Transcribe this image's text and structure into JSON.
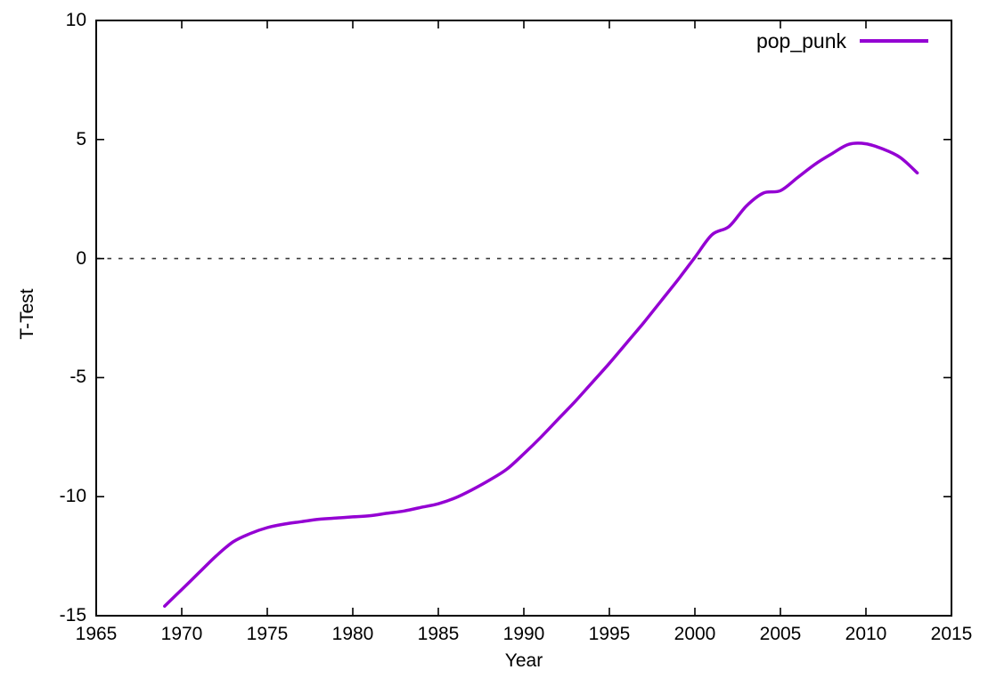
{
  "figure": {
    "background_color": "#ffffff",
    "border_color": "#000000",
    "text_color": "#000000"
  },
  "chart_data": {
    "type": "line",
    "title": "",
    "xlabel": "Year",
    "ylabel": "T-Test",
    "xlim": [
      1965,
      2015
    ],
    "ylim": [
      -15,
      10
    ],
    "xticks": [
      1965,
      1970,
      1975,
      1980,
      1985,
      1990,
      1995,
      2000,
      2005,
      2010,
      2015
    ],
    "yticks": [
      -15,
      -10,
      -5,
      0,
      5,
      10
    ],
    "grid": false,
    "zero_line": {
      "visible": true,
      "style": "dashed",
      "color": "#3a3a3a"
    },
    "legend": {
      "position": "top-right-inside",
      "entries": [
        "pop_punk"
      ]
    },
    "series": [
      {
        "name": "pop_punk",
        "color": "#9400d3",
        "x": [
          1969,
          1970,
          1971,
          1972,
          1973,
          1974,
          1975,
          1976,
          1977,
          1978,
          1979,
          1980,
          1981,
          1982,
          1983,
          1984,
          1985,
          1986,
          1987,
          1988,
          1989,
          1990,
          1991,
          1992,
          1993,
          1994,
          1995,
          1996,
          1997,
          1998,
          1999,
          2000,
          2001,
          2002,
          2003,
          2004,
          2005,
          2006,
          2007,
          2008,
          2009,
          2010,
          2011,
          2012,
          2013
        ],
        "y": [
          -14.6,
          -13.9,
          -13.2,
          -12.5,
          -11.9,
          -11.55,
          -11.3,
          -11.15,
          -11.05,
          -10.95,
          -10.9,
          -10.85,
          -10.8,
          -10.7,
          -10.6,
          -10.45,
          -10.3,
          -10.05,
          -9.7,
          -9.3,
          -8.85,
          -8.2,
          -7.5,
          -6.75,
          -6.0,
          -5.2,
          -4.4,
          -3.55,
          -2.7,
          -1.8,
          -0.9,
          0.05,
          1.0,
          1.35,
          2.2,
          2.75,
          2.85,
          3.4,
          3.95,
          4.4,
          4.8,
          4.82,
          4.6,
          4.25,
          3.6
        ]
      }
    ]
  }
}
